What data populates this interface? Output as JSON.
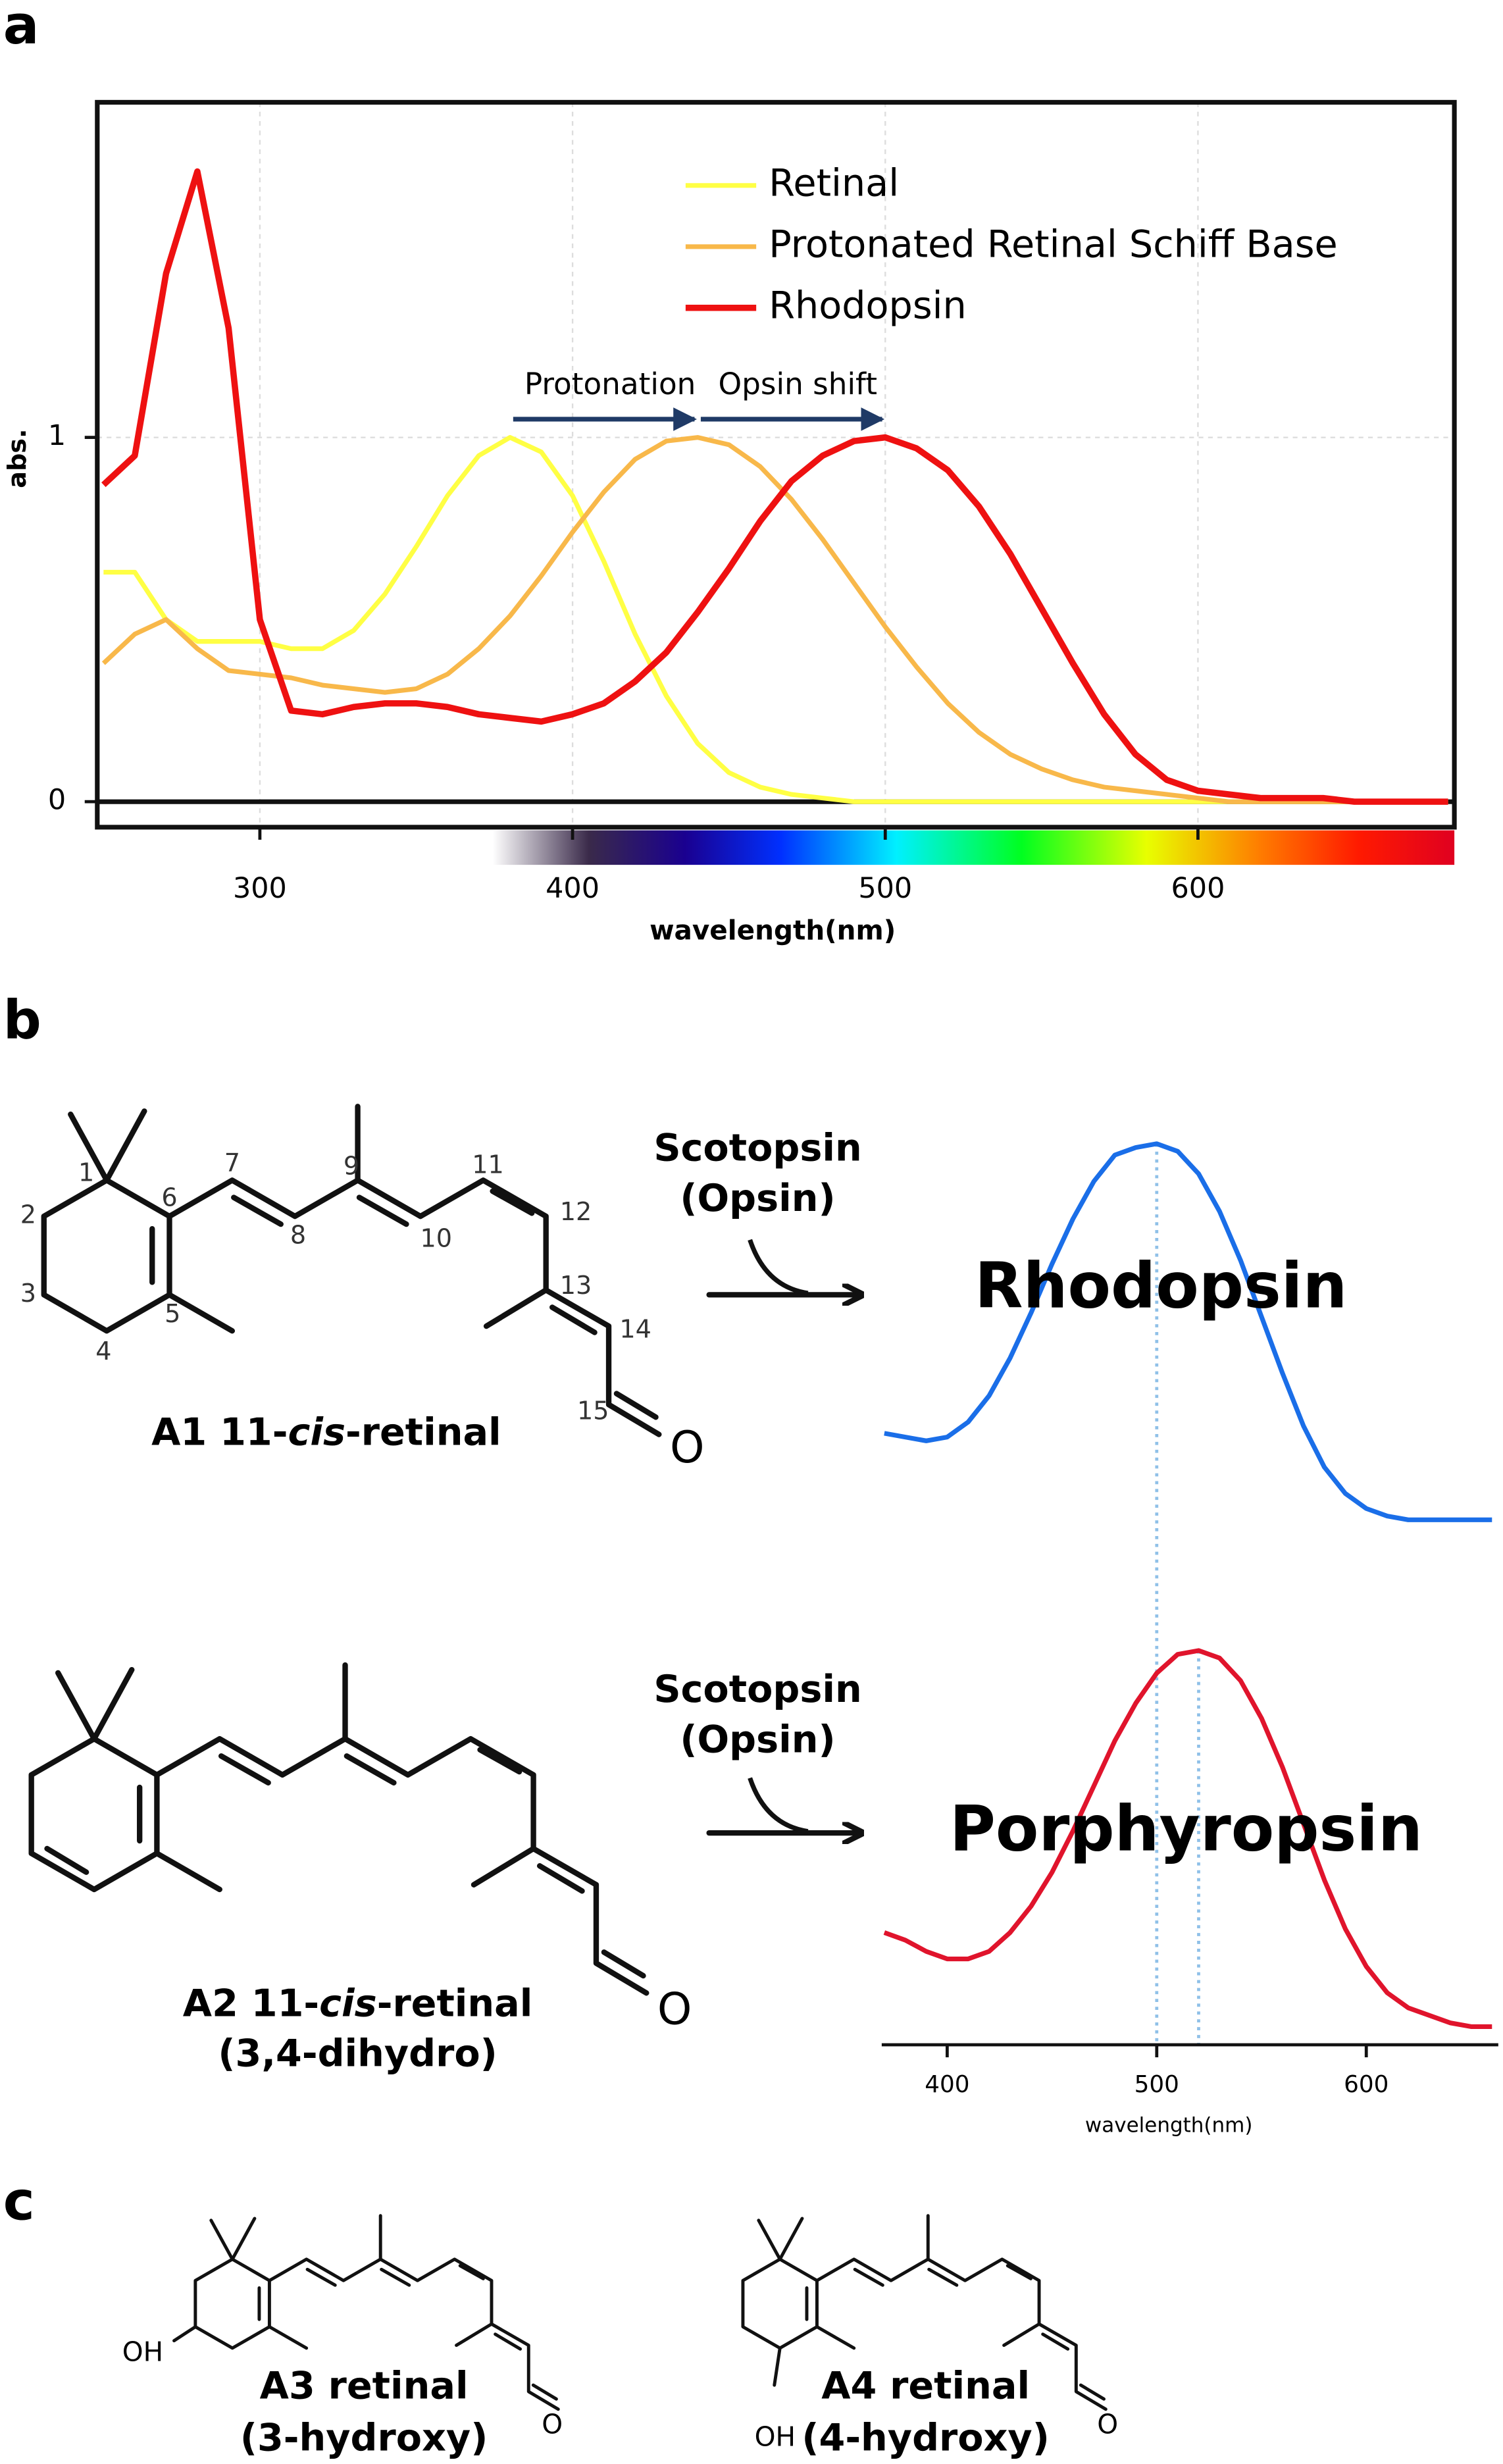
{
  "panel_labels": [
    "a",
    "b",
    "c"
  ],
  "chart_data": [
    {
      "type": "line",
      "ylabel": "abs.",
      "xlabel": "wavelength(nm)",
      "xlim": [
        248,
        682
      ],
      "ylim": [
        -0.07,
        1.92
      ],
      "xticks": [
        300,
        400,
        500,
        600
      ],
      "yticks": [
        0,
        1
      ],
      "grid": true,
      "legend": "upper right",
      "x": [
        250,
        260,
        270,
        280,
        290,
        300,
        310,
        320,
        330,
        340,
        350,
        360,
        370,
        380,
        390,
        400,
        410,
        420,
        430,
        440,
        450,
        460,
        470,
        480,
        490,
        500,
        510,
        520,
        530,
        540,
        550,
        560,
        570,
        580,
        590,
        600,
        610,
        620,
        630,
        640,
        650,
        660,
        670,
        680
      ],
      "series": [
        {
          "name": "Retinal",
          "color": "#ffff44",
          "values": [
            0.63,
            0.63,
            0.5,
            0.44,
            0.44,
            0.44,
            0.42,
            0.42,
            0.47,
            0.57,
            0.7,
            0.84,
            0.95,
            1.0,
            0.96,
            0.84,
            0.66,
            0.46,
            0.29,
            0.16,
            0.08,
            0.04,
            0.02,
            0.01,
            0,
            0,
            0,
            0,
            0,
            0,
            0,
            0,
            0,
            0,
            0,
            0,
            0,
            0,
            0,
            0,
            0,
            0,
            0,
            0
          ]
        },
        {
          "name": "Protonated Retinal Schiff Base",
          "color": "#f8b84a",
          "values": [
            0.38,
            0.46,
            0.5,
            0.42,
            0.36,
            0.35,
            0.34,
            0.32,
            0.31,
            0.3,
            0.31,
            0.35,
            0.42,
            0.51,
            0.62,
            0.74,
            0.85,
            0.94,
            0.99,
            1.0,
            0.98,
            0.92,
            0.83,
            0.72,
            0.6,
            0.48,
            0.37,
            0.27,
            0.19,
            0.13,
            0.09,
            0.06,
            0.04,
            0.03,
            0.02,
            0.01,
            0,
            0,
            0,
            0,
            0,
            0,
            0,
            0
          ]
        },
        {
          "name": "Rhodopsin",
          "color": "#ee1111",
          "values": [
            0.87,
            0.95,
            1.45,
            1.73,
            1.3,
            0.5,
            0.25,
            0.24,
            0.26,
            0.27,
            0.27,
            0.26,
            0.24,
            0.23,
            0.22,
            0.24,
            0.27,
            0.33,
            0.41,
            0.52,
            0.64,
            0.77,
            0.88,
            0.95,
            0.99,
            1.0,
            0.97,
            0.91,
            0.81,
            0.68,
            0.53,
            0.38,
            0.24,
            0.13,
            0.06,
            0.03,
            0.02,
            0.01,
            0.01,
            0.01,
            0,
            0,
            0,
            0
          ]
        }
      ],
      "annotations": [
        {
          "text": "Protonation",
          "x": [
            380,
            440
          ],
          "y": 1.05
        },
        {
          "text": "Opsin shift",
          "x": [
            440,
            500
          ],
          "y": 1.05
        }
      ]
    },
    {
      "type": "line",
      "label": "Rhodopsin",
      "xlim": [
        371,
        663
      ],
      "ylim": [
        -0.09,
        1.12
      ],
      "vlines": [
        500
      ],
      "x": [
        370,
        380,
        390,
        400,
        410,
        420,
        430,
        440,
        450,
        460,
        470,
        480,
        490,
        500,
        510,
        520,
        530,
        540,
        550,
        560,
        570,
        580,
        590,
        600,
        610,
        620,
        630,
        640,
        650,
        660
      ],
      "series": [
        {
          "color": "#1a6ee8",
          "values": [
            0.23,
            0.22,
            0.21,
            0.22,
            0.26,
            0.33,
            0.43,
            0.55,
            0.68,
            0.8,
            0.9,
            0.97,
            0.99,
            1.0,
            0.98,
            0.92,
            0.82,
            0.69,
            0.54,
            0.39,
            0.25,
            0.14,
            0.07,
            0.03,
            0.01,
            0,
            0,
            0,
            0,
            0
          ]
        }
      ]
    },
    {
      "type": "line",
      "label": "Porphyropsin",
      "xlabel": "wavelength(nm)",
      "xlim": [
        371,
        663
      ],
      "ylim": [
        -0.09,
        1.12
      ],
      "xticks": [
        400,
        500,
        600
      ],
      "vlines": [
        520
      ],
      "x": [
        370,
        380,
        390,
        400,
        410,
        420,
        430,
        440,
        450,
        460,
        470,
        480,
        490,
        500,
        510,
        520,
        530,
        540,
        550,
        560,
        570,
        580,
        590,
        600,
        610,
        620,
        630,
        640,
        650,
        660
      ],
      "series": [
        {
          "color": "#e0142c",
          "values": [
            0.25,
            0.23,
            0.2,
            0.18,
            0.18,
            0.2,
            0.25,
            0.32,
            0.41,
            0.52,
            0.64,
            0.76,
            0.86,
            0.94,
            0.99,
            1.0,
            0.98,
            0.92,
            0.82,
            0.69,
            0.54,
            0.39,
            0.26,
            0.16,
            0.09,
            0.05,
            0.03,
            0.01,
            0,
            0
          ]
        }
      ]
    }
  ],
  "structures": {
    "a1": {
      "name": [
        "A1 11-",
        "cis",
        "-retinal"
      ],
      "atoms": [
        "1",
        "2",
        "3",
        "4",
        "5",
        "6",
        "7",
        "8",
        "9",
        "10",
        "11",
        "12",
        "13",
        "14",
        "15"
      ],
      "oxygen": "O"
    },
    "reaction": [
      "Scotopsin",
      "(Opsin)"
    ],
    "a2": {
      "name": [
        "A2 11-",
        "cis",
        "-retinal"
      ],
      "note": "(3,4-dihydro)",
      "oxygen": "O"
    },
    "a3": {
      "name": "A3 retinal",
      "note": "(3-hydroxy)",
      "hydroxyl": "OH",
      "oxygen": "O"
    },
    "a4": {
      "name": "A4 retinal",
      "note": "(4-hydroxy)",
      "hydroxyl": "OH",
      "oxygen": "O"
    }
  }
}
